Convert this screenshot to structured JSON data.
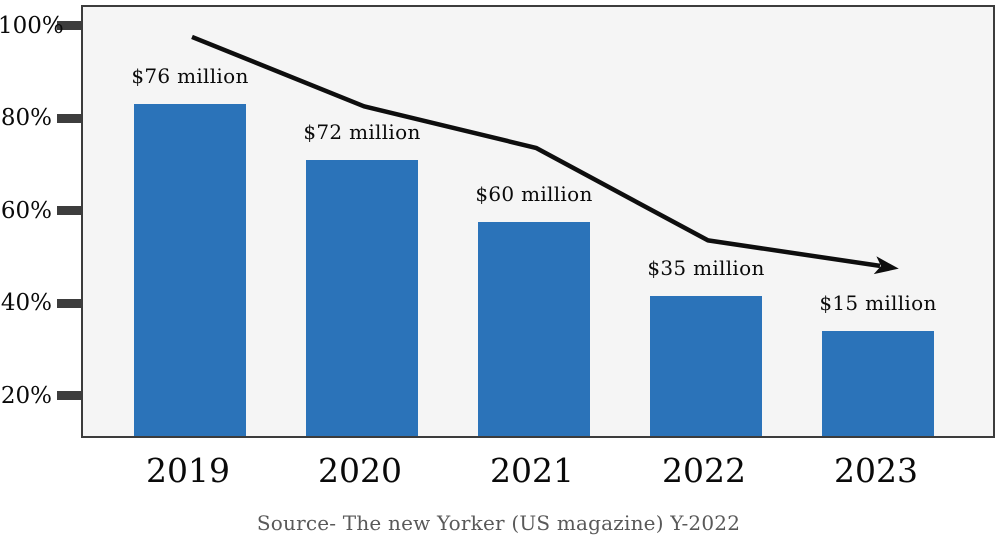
{
  "chart_data": {
    "type": "bar",
    "title": "",
    "categories": [
      "2019",
      "2020",
      "2021",
      "2022",
      "2023"
    ],
    "bar_labels": [
      "$76 million",
      "$72 million",
      "$60 million",
      "$35 million",
      "$15 million"
    ],
    "bar_values_usd_millions": [
      76,
      72,
      60,
      35,
      15
    ],
    "series": [
      {
        "name": "yearly-amount-bars",
        "type": "bar",
        "values_percent": [
          83,
          71,
          57.5,
          41.5,
          34
        ]
      },
      {
        "name": "downward-trend-line",
        "type": "line",
        "values_percent": [
          98,
          83,
          74,
          54,
          48.5
        ]
      }
    ],
    "xlabel": "",
    "ylabel": "",
    "y_axis": {
      "tick_labels": [
        "100%",
        "80%",
        "60%",
        "40%",
        "20%"
      ],
      "tick_values": [
        100,
        80,
        60,
        40,
        20
      ],
      "ylim_percent": [
        10.9,
        104.6
      ],
      "grid": false
    },
    "legend_position": "none",
    "colors": {
      "bar": "#2b73b9",
      "trend_line": "#0e0e0e",
      "plot_background": "#f5f5f5",
      "plot_border": "#3c3c3c",
      "tick_mark": "#3d3d3d",
      "axis_text": "#0a0a0a",
      "bar_label_text": "#0a0a0a",
      "source_text": "#595959"
    },
    "source_caption": "Source- The new Yorker (US magazine) Y-2022"
  }
}
